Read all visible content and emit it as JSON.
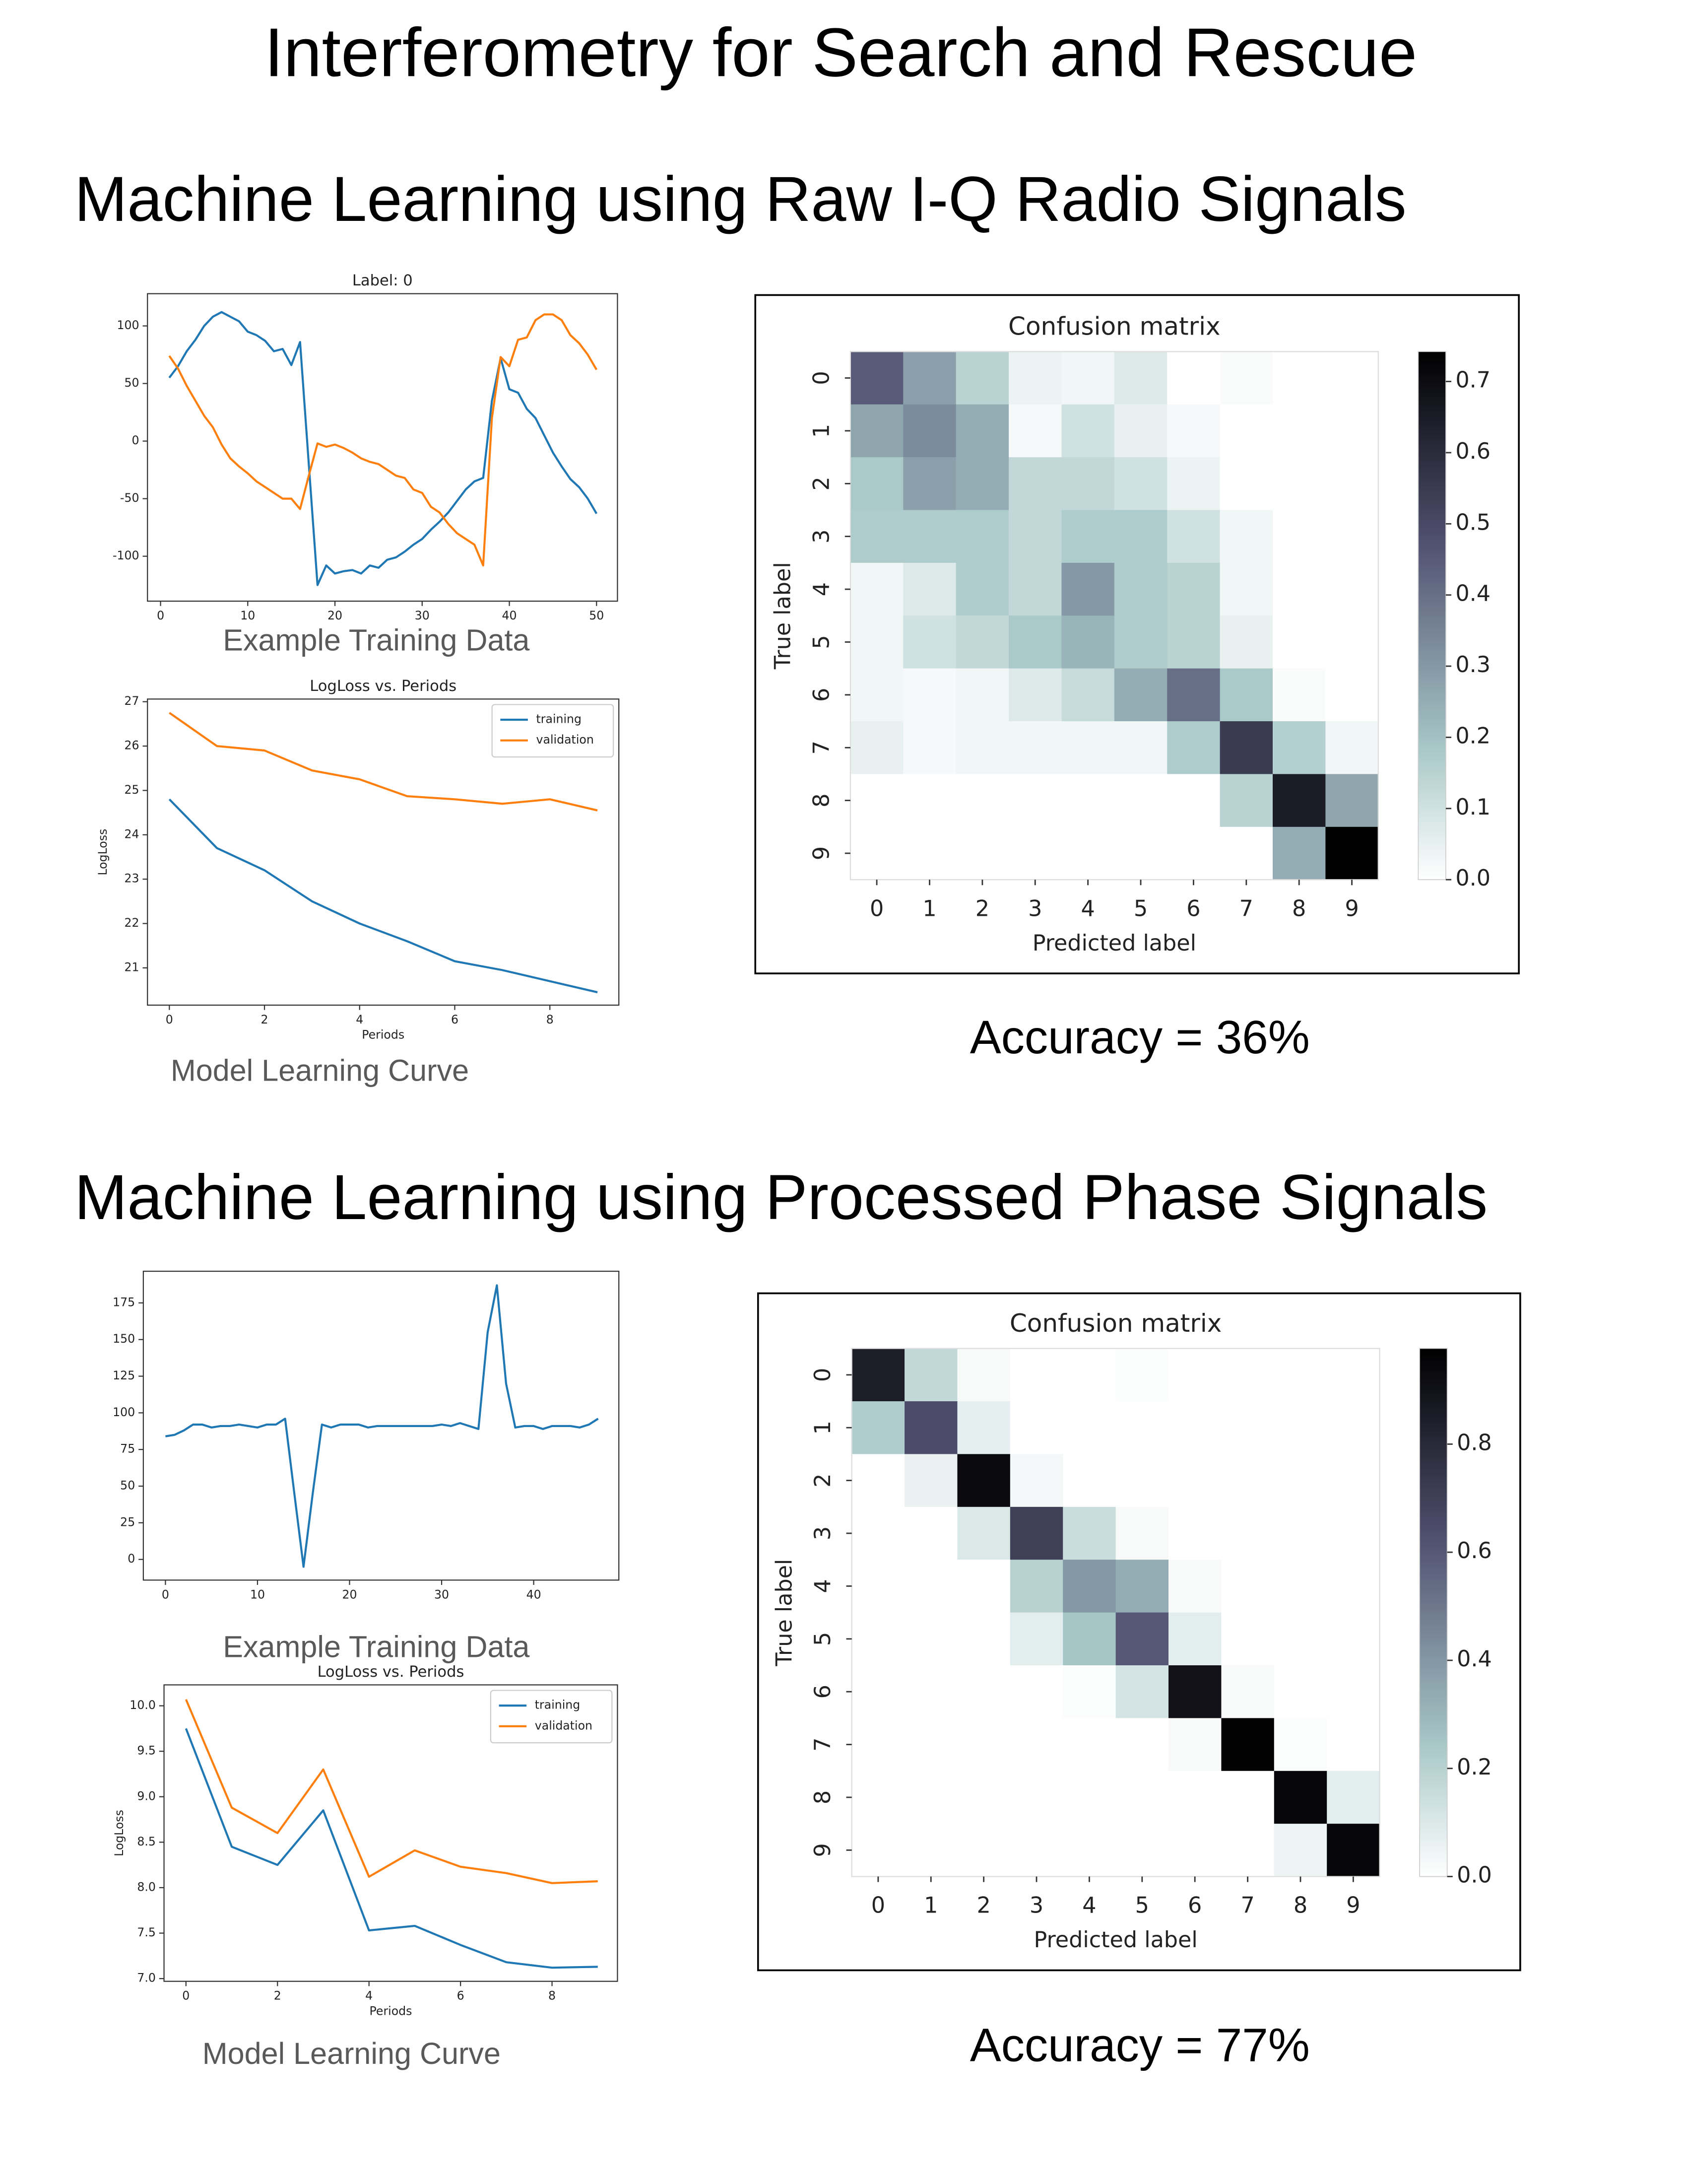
{
  "title": "Interferometry for Search and Rescue",
  "headings": [
    "Machine Learning using Raw I-Q Radio Signals",
    "Machine Learning using Processed Phase Signals"
  ],
  "chart_data": [
    {
      "type": "line",
      "title": "Label: 0",
      "caption": "Example Training Data",
      "x": [
        1,
        2,
        3,
        4,
        5,
        6,
        7,
        8,
        9,
        10,
        11,
        12,
        13,
        14,
        15,
        16,
        17,
        18,
        19,
        20,
        21,
        22,
        23,
        24,
        25,
        26,
        27,
        28,
        29,
        30,
        31,
        32,
        33,
        34,
        35,
        36,
        37,
        38,
        39,
        40,
        41,
        42,
        43,
        44,
        45,
        46,
        47,
        48,
        49,
        50
      ],
      "series": [
        {
          "color": "#1f77b4",
          "values": [
            55,
            65,
            78,
            88,
            100,
            108,
            112,
            108,
            104,
            95,
            92,
            87,
            78,
            80,
            66,
            86,
            -20,
            -125,
            -108,
            -115,
            -113,
            -112,
            -115,
            -108,
            -110,
            -103,
            -101,
            -96,
            -90,
            -85,
            -77,
            -70,
            -62,
            -52,
            -42,
            -35,
            -32,
            35,
            72,
            45,
            42,
            28,
            20,
            5,
            -10,
            -22,
            -33,
            -40,
            -50,
            -63
          ]
        },
        {
          "color": "#ff7f0e",
          "values": [
            74,
            63,
            48,
            35,
            22,
            12,
            -3,
            -15,
            -22,
            -28,
            -35,
            -40,
            -45,
            -50,
            -50,
            -59,
            -30,
            -2,
            -5,
            -3,
            -6,
            -10,
            -15,
            -18,
            -20,
            -25,
            -30,
            -32,
            -42,
            -45,
            -57,
            -62,
            -72,
            -80,
            -85,
            -90,
            -108,
            20,
            73,
            65,
            88,
            90,
            105,
            110,
            110,
            105,
            92,
            85,
            75,
            62
          ]
        }
      ],
      "xlim": [
        -1.5,
        52.4
      ],
      "xticks": [
        0,
        10,
        20,
        30,
        40,
        50
      ],
      "ylim": [
        -139,
        128
      ],
      "yticks": [
        100,
        50,
        0,
        -50,
        -100
      ],
      "grid": false
    },
    {
      "type": "line",
      "title": "LogLoss vs. Periods",
      "caption": "Model Learning Curve",
      "xlabel": "Periods",
      "ylabel": "LogLoss",
      "x": [
        0,
        1,
        2,
        3,
        4,
        5,
        6,
        7,
        8,
        9
      ],
      "series": [
        {
          "name": "training",
          "color": "#1f77b4",
          "values": [
            24.8,
            23.7,
            23.2,
            22.5,
            22.0,
            21.6,
            21.15,
            20.95,
            20.7,
            20.45
          ]
        },
        {
          "name": "validation",
          "color": "#ff7f0e",
          "values": [
            26.75,
            26.0,
            25.9,
            25.45,
            25.25,
            24.87,
            24.8,
            24.7,
            24.8,
            24.55
          ]
        }
      ],
      "xlim": [
        -0.46,
        9.45
      ],
      "xticks": [
        0,
        2,
        4,
        6,
        8
      ],
      "ylim": [
        20.16,
        27.06
      ],
      "yticks": [
        21,
        22,
        23,
        24,
        25,
        26,
        27
      ],
      "grid": false,
      "legend": "upper right"
    },
    {
      "type": "heatmap",
      "title": "Confusion matrix",
      "caption": "Accuracy = 36%",
      "xlabel": "Predicted label",
      "ylabel": "True label",
      "x_categories": [
        "0",
        "1",
        "2",
        "3",
        "4",
        "5",
        "6",
        "7",
        "8",
        "9"
      ],
      "y_categories": [
        "0",
        "1",
        "2",
        "3",
        "4",
        "5",
        "6",
        "7",
        "8",
        "9"
      ],
      "values": [
        [
          0.45,
          0.28,
          0.15,
          0.04,
          0.03,
          0.07,
          0,
          0.01,
          0,
          0
        ],
        [
          0.27,
          0.33,
          0.25,
          0.02,
          0.1,
          0.05,
          0.02,
          0,
          0,
          0
        ],
        [
          0.18,
          0.28,
          0.25,
          0.13,
          0.13,
          0.1,
          0.04,
          0,
          0,
          0
        ],
        [
          0.17,
          0.17,
          0.17,
          0.13,
          0.17,
          0.17,
          0.1,
          0.03,
          0,
          0
        ],
        [
          0.03,
          0.07,
          0.17,
          0.13,
          0.3,
          0.17,
          0.15,
          0.03,
          0,
          0
        ],
        [
          0.03,
          0.1,
          0.13,
          0.18,
          0.23,
          0.17,
          0.15,
          0.05,
          0,
          0
        ],
        [
          0.03,
          0.02,
          0.03,
          0.07,
          0.12,
          0.25,
          0.4,
          0.18,
          0.01,
          0
        ],
        [
          0.05,
          0.02,
          0.03,
          0.03,
          0.03,
          0.03,
          0.17,
          0.55,
          0.16,
          0.03
        ],
        [
          0,
          0,
          0,
          0,
          0,
          0,
          0,
          0.15,
          0.65,
          0.27
        ],
        [
          0,
          0,
          0,
          0,
          0,
          0,
          0,
          0,
          0.25,
          0.74
        ]
      ],
      "colormap": "bone_r",
      "clim": [
        0,
        0.742
      ],
      "cticks": [
        {
          "value": 0,
          "label": "0.0"
        },
        0.1,
        0.2,
        0.3,
        0.4,
        0.5,
        0.6,
        0.7
      ]
    },
    {
      "type": "line",
      "caption": "Example Training Data",
      "x": [
        0,
        1,
        2,
        3,
        4,
        5,
        6,
        7,
        8,
        9,
        10,
        11,
        12,
        13,
        14,
        15,
        16,
        17,
        18,
        19,
        20,
        21,
        22,
        23,
        24,
        25,
        26,
        27,
        28,
        29,
        30,
        31,
        32,
        33,
        34,
        35,
        36,
        37,
        38,
        39,
        40,
        41,
        42,
        43,
        44,
        45,
        46,
        47
      ],
      "series": [
        {
          "color": "#1f77b4",
          "values": [
            84,
            85,
            88,
            92,
            92,
            90,
            91,
            91,
            92,
            91,
            90,
            92,
            92,
            96,
            45,
            -5,
            45,
            92,
            90,
            92,
            92,
            92,
            90,
            91,
            91,
            91,
            91,
            91,
            91,
            91,
            92,
            91,
            93,
            91,
            89,
            155,
            187,
            120,
            90,
            91,
            91,
            89,
            91,
            91,
            91,
            90,
            92,
            96
          ]
        }
      ],
      "xlim": [
        -2.4,
        49.25
      ],
      "xticks": [
        0,
        10,
        20,
        30,
        40
      ],
      "ylim": [
        -14.1,
        196.6
      ],
      "yticks": [
        0,
        25,
        50,
        75,
        100,
        125,
        150,
        175
      ],
      "grid": false
    },
    {
      "type": "line",
      "title": "LogLoss vs. Periods",
      "caption": "Model Learning Curve",
      "xlabel": "Periods",
      "ylabel": "LogLoss",
      "x": [
        0,
        1,
        2,
        3,
        4,
        5,
        6,
        7,
        8,
        9
      ],
      "series": [
        {
          "name": "training",
          "color": "#1f77b4",
          "values": [
            9.75,
            8.45,
            8.25,
            8.85,
            7.53,
            7.58,
            7.37,
            7.18,
            7.12,
            7.13
          ]
        },
        {
          "name": "validation",
          "color": "#ff7f0e",
          "values": [
            10.07,
            8.88,
            8.6,
            9.3,
            8.12,
            8.41,
            8.23,
            8.16,
            8.05,
            8.07
          ]
        }
      ],
      "xlim": [
        -0.48,
        9.43
      ],
      "xticks": [
        0,
        2,
        4,
        6,
        8
      ],
      "ylim": [
        6.97,
        10.23
      ],
      "yticks": [
        {
          "value": 7,
          "label": "7.0"
        },
        7.5,
        {
          "value": 8,
          "label": "8.0"
        },
        8.5,
        {
          "value": 9,
          "label": "9.0"
        },
        9.5,
        {
          "value": 10,
          "label": "10.0"
        }
      ],
      "grid": false,
      "legend": "upper right"
    },
    {
      "type": "heatmap",
      "title": "Confusion matrix",
      "caption": "Accuracy = 77%",
      "xlabel": "Predicted label",
      "ylabel": "True label",
      "x_categories": [
        "0",
        "1",
        "2",
        "3",
        "4",
        "5",
        "6",
        "7",
        "8",
        "9"
      ],
      "y_categories": [
        "0",
        "1",
        "2",
        "3",
        "4",
        "5",
        "6",
        "7",
        "8",
        "9"
      ],
      "values": [
        [
          0.85,
          0.17,
          0.02,
          0,
          0,
          0.01,
          0,
          0,
          0,
          0
        ],
        [
          0.22,
          0.65,
          0.07,
          0,
          0,
          0,
          0,
          0,
          0,
          0
        ],
        [
          0,
          0.06,
          0.93,
          0.03,
          0,
          0,
          0,
          0,
          0,
          0
        ],
        [
          0,
          0,
          0.1,
          0.7,
          0.15,
          0.02,
          0,
          0,
          0,
          0
        ],
        [
          0,
          0,
          0,
          0.2,
          0.4,
          0.33,
          0.02,
          0,
          0,
          0
        ],
        [
          0,
          0,
          0,
          0.08,
          0.25,
          0.6,
          0.08,
          0,
          0,
          0
        ],
        [
          0,
          0,
          0,
          0,
          0.01,
          0.12,
          0.9,
          0.02,
          0,
          0
        ],
        [
          0,
          0,
          0,
          0,
          0,
          0,
          0.02,
          0.97,
          0.01,
          0
        ],
        [
          0,
          0,
          0,
          0,
          0,
          0,
          0,
          0,
          0.95,
          0.08
        ],
        [
          0,
          0,
          0,
          0,
          0,
          0,
          0,
          0,
          0.05,
          0.95
        ]
      ],
      "colormap": "bone_r",
      "clim": [
        0,
        0.977
      ],
      "cticks": [
        {
          "value": 0,
          "label": "0.0"
        },
        {
          "value": 0.2,
          "label": "0.2"
        },
        {
          "value": 0.4,
          "label": "0.4"
        },
        {
          "value": 0.6,
          "label": "0.6"
        },
        {
          "value": 0.8,
          "label": "0.8"
        }
      ]
    }
  ]
}
